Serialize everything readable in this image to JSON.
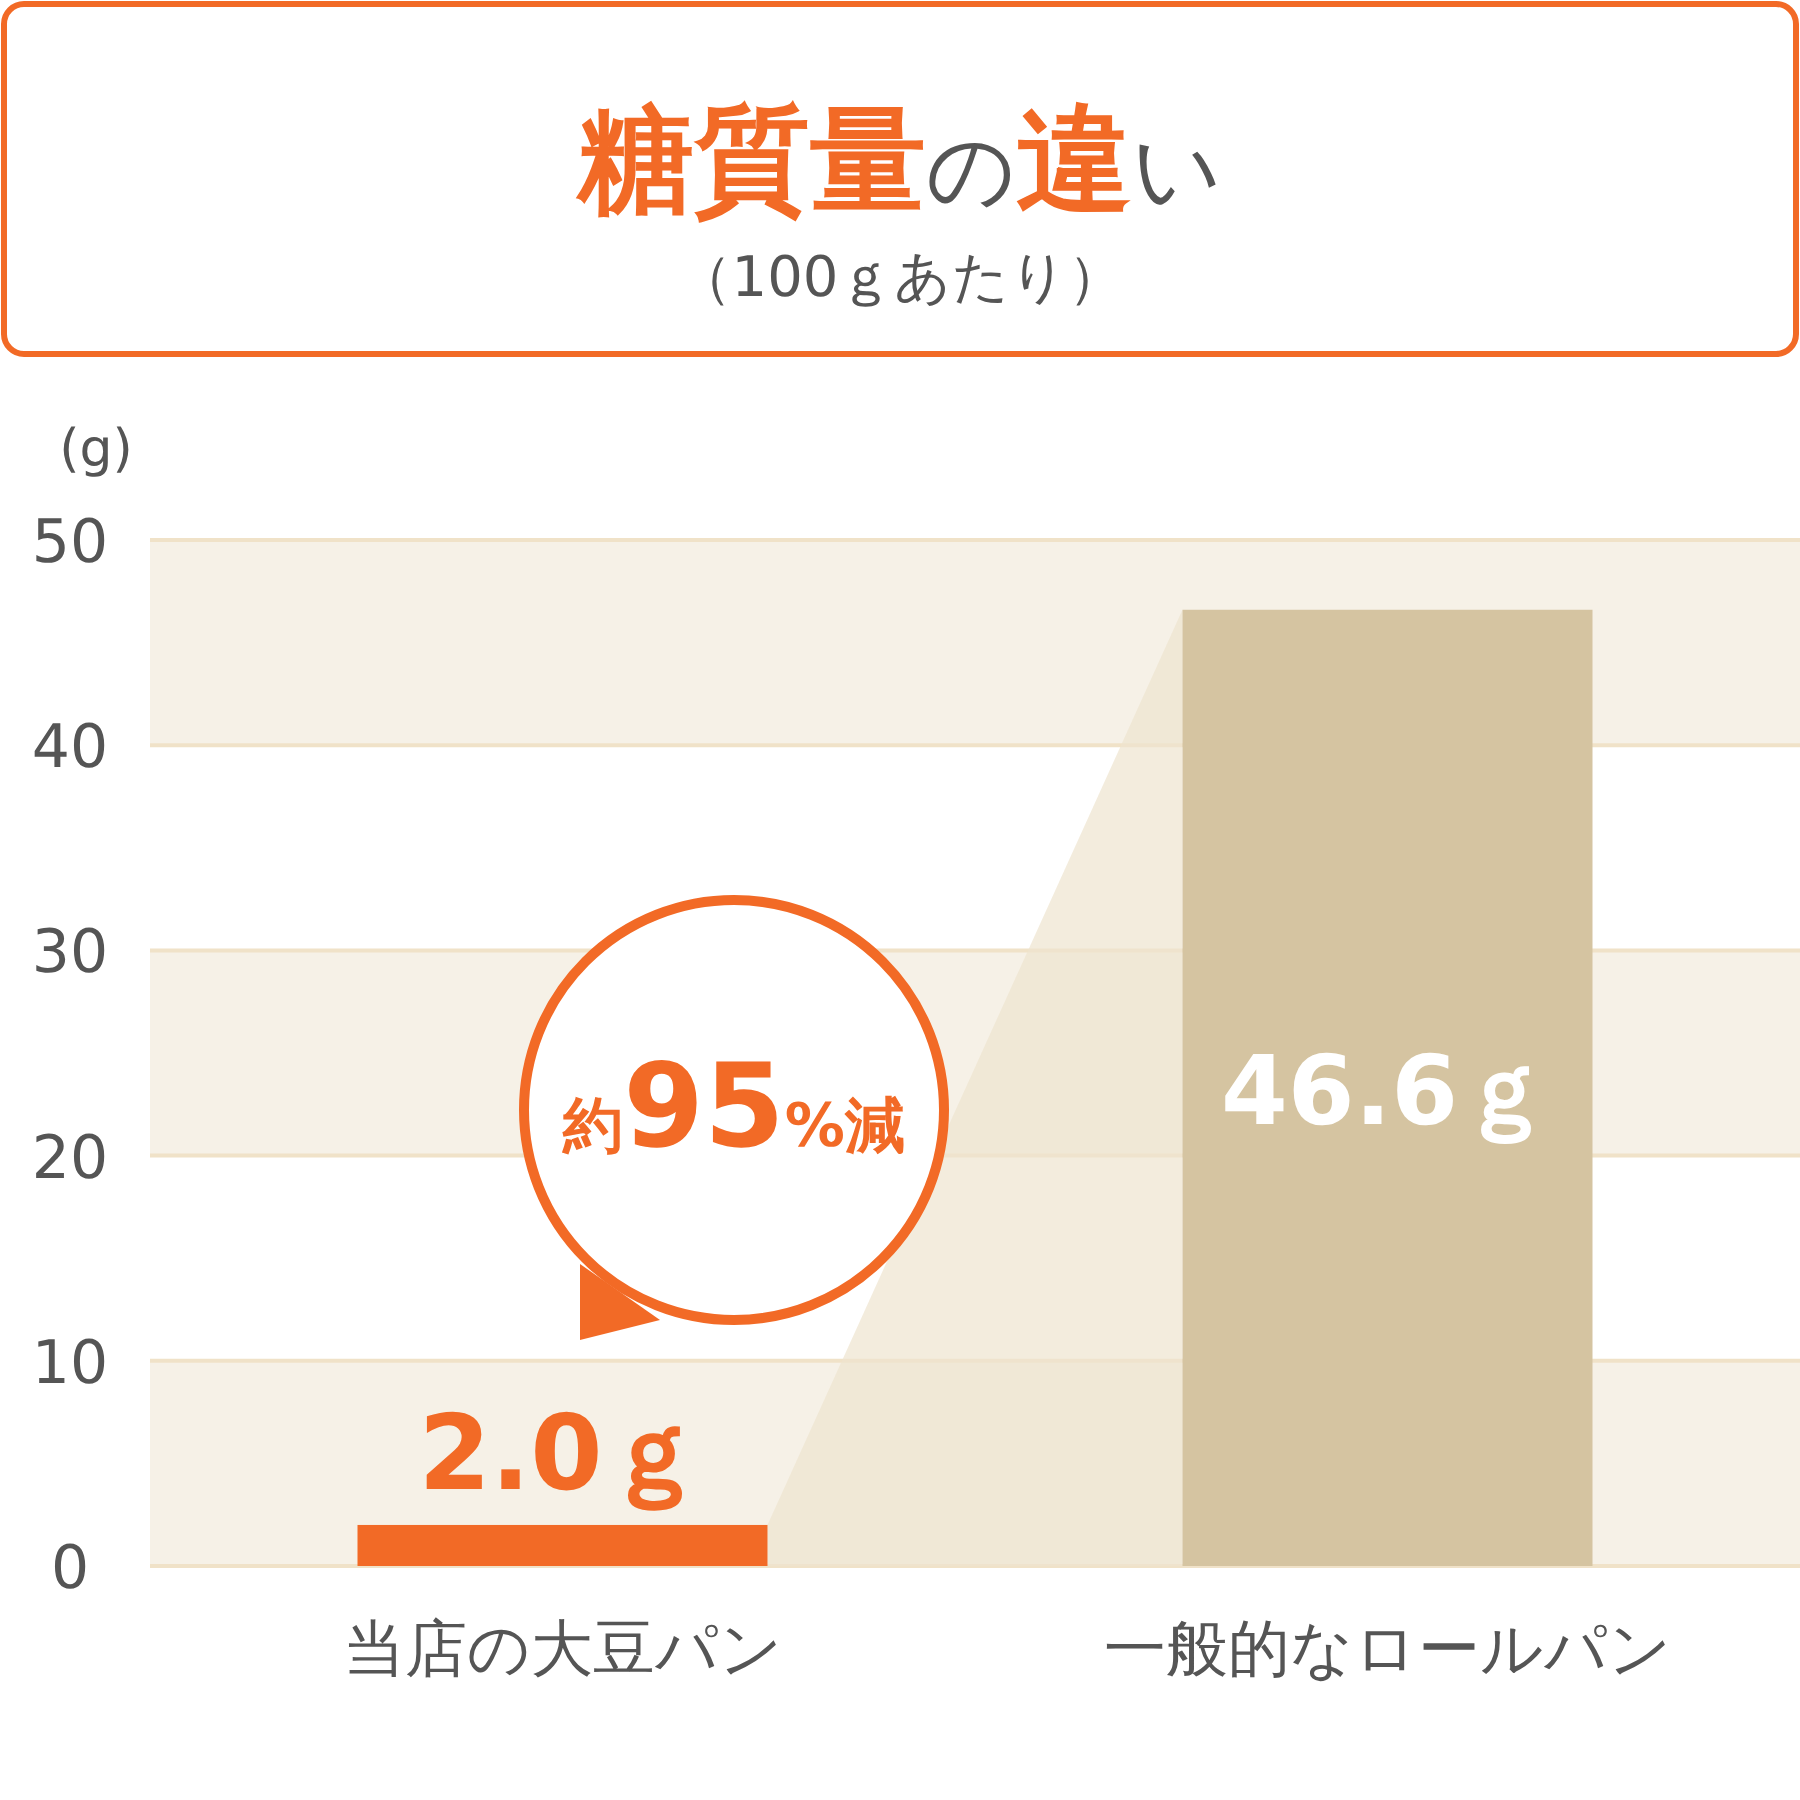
{
  "chart_data": {
    "type": "bar",
    "title": "糖質量の違い",
    "subtitle": "（100ｇあたり）",
    "ylabel": "(g)",
    "categories": [
      "当店の大豆パン",
      "一般的なロールパン"
    ],
    "values": [
      2.0,
      46.6
    ],
    "colors": [
      "#f26a26",
      "#d5c4a1"
    ],
    "value_labels": [
      "2.0ｇ",
      "46.6ｇ"
    ],
    "annotations": [
      "約95%減"
    ],
    "ylim": [
      0,
      50
    ],
    "yticks": [
      0,
      10,
      20,
      30,
      40,
      50
    ],
    "grid": "y",
    "bands": [
      {
        "axis": "y",
        "from": 0,
        "to": 10,
        "color": "#f6f1e7"
      },
      {
        "axis": "y",
        "from": 20,
        "to": 30,
        "color": "#f6f1e7"
      },
      {
        "axis": "y",
        "from": 40,
        "to": 50,
        "color": "#f6f1e7"
      }
    ]
  }
}
